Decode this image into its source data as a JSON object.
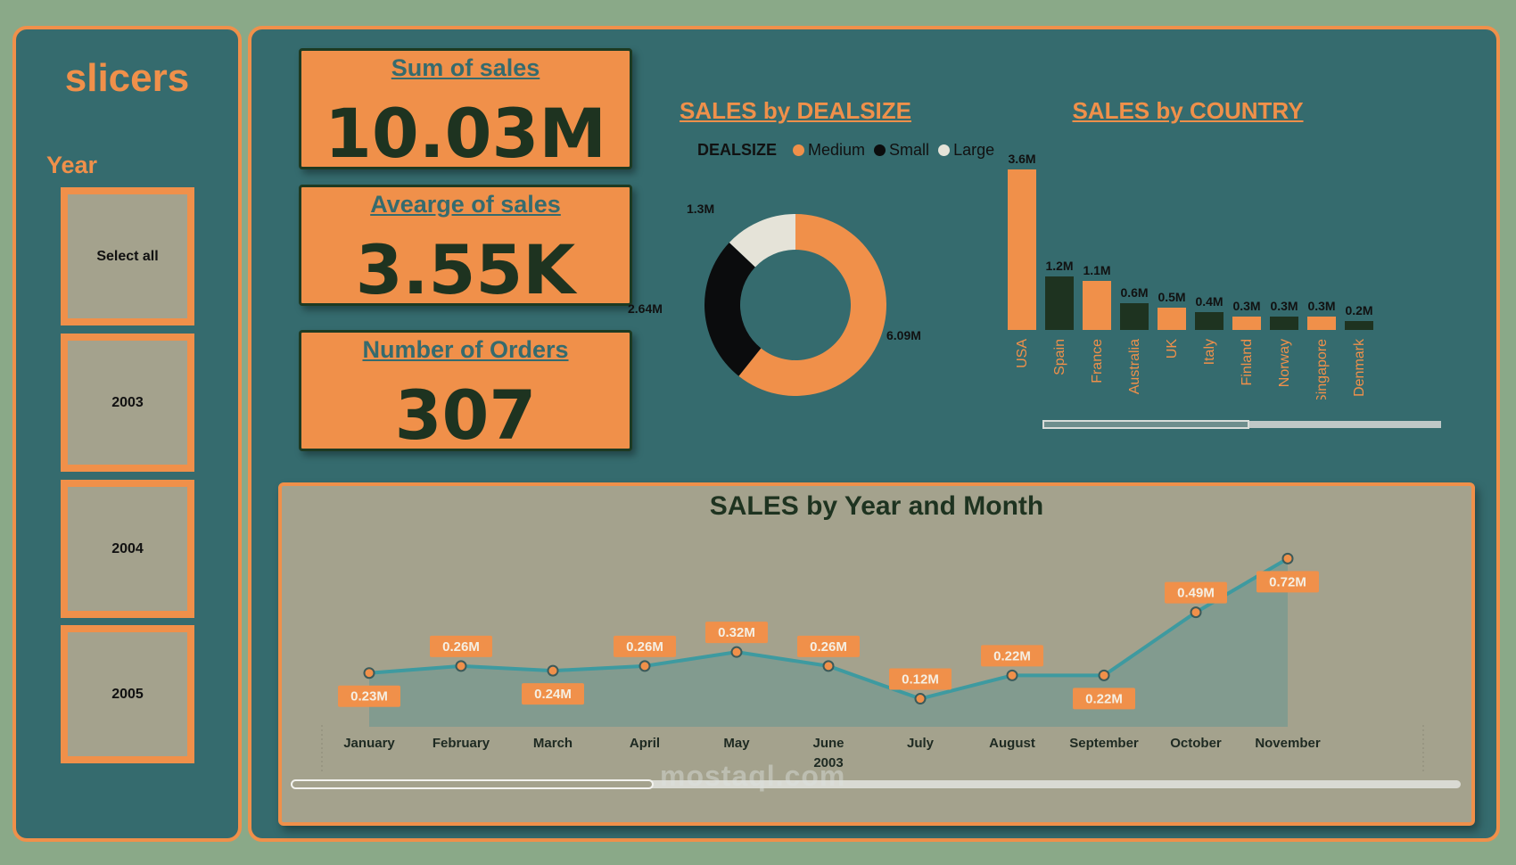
{
  "slicers": {
    "title": "slicers",
    "year_label": "Year",
    "options": [
      "Select all",
      "2003",
      "2004",
      "2005"
    ]
  },
  "kpis": [
    {
      "title": "Sum of sales",
      "value": "10.03M"
    },
    {
      "title": "Avearge of sales",
      "value": "3.55K"
    },
    {
      "title": "Number of Orders",
      "value": "307"
    }
  ],
  "watermark": "mostaql.com",
  "colors": {
    "accent": "#f0904a",
    "panel": "#356b6e",
    "dark": "#1e3320",
    "small": "#0b0c0d",
    "large": "#e5e3d8",
    "card": "#a4a28d"
  },
  "chart_data": [
    {
      "type": "pie",
      "title": "SALES by DEALSIZE",
      "legend_title": "DEALSIZE",
      "legend_position": "top",
      "categories": [
        "Medium",
        "Small",
        "Large"
      ],
      "values": [
        6.09,
        2.64,
        1.3
      ],
      "labels": [
        "6.09M",
        "2.64M",
        "1.3M"
      ],
      "colors": [
        "#f0904a",
        "#0b0c0d",
        "#e5e3d8"
      ]
    },
    {
      "type": "bar",
      "title": "SALES by COUNTRY",
      "categories": [
        "USA",
        "Spain",
        "France",
        "Australia",
        "UK",
        "Italy",
        "Finland",
        "Norway",
        "Singapore",
        "Denmark"
      ],
      "values": [
        3.6,
        1.2,
        1.1,
        0.6,
        0.5,
        0.4,
        0.3,
        0.3,
        0.3,
        0.2
      ],
      "labels": [
        "3.6M",
        "1.2M",
        "1.1M",
        "0.6M",
        "0.5M",
        "0.4M",
        "0.3M",
        "0.3M",
        "0.3M",
        "0.2M"
      ],
      "bar_colors": [
        "#f0904a",
        "#1e3320",
        "#f0904a",
        "#1e3320",
        "#f0904a",
        "#1e3320",
        "#f0904a",
        "#1e3320",
        "#f0904a",
        "#1e3320"
      ],
      "scrollbar_position": 0.52
    },
    {
      "type": "area",
      "title": "SALES by Year and Month",
      "categories": [
        "January",
        "February",
        "March",
        "April",
        "May",
        "June",
        "July",
        "August",
        "September",
        "October",
        "November"
      ],
      "year_label": "2003",
      "values": [
        0.23,
        0.26,
        0.24,
        0.26,
        0.32,
        0.26,
        0.12,
        0.22,
        0.22,
        0.49,
        0.72
      ],
      "labels": [
        "0.23M",
        "0.26M",
        "0.24M",
        "0.26M",
        "0.32M",
        "0.26M",
        "0.12M",
        "0.22M",
        "0.22M",
        "0.49M",
        "0.72M"
      ],
      "label_above": [
        false,
        true,
        false,
        true,
        true,
        true,
        true,
        true,
        false,
        true,
        false
      ],
      "ylim": [
        0,
        0.8
      ],
      "scrollbar_position": 0.31
    }
  ]
}
